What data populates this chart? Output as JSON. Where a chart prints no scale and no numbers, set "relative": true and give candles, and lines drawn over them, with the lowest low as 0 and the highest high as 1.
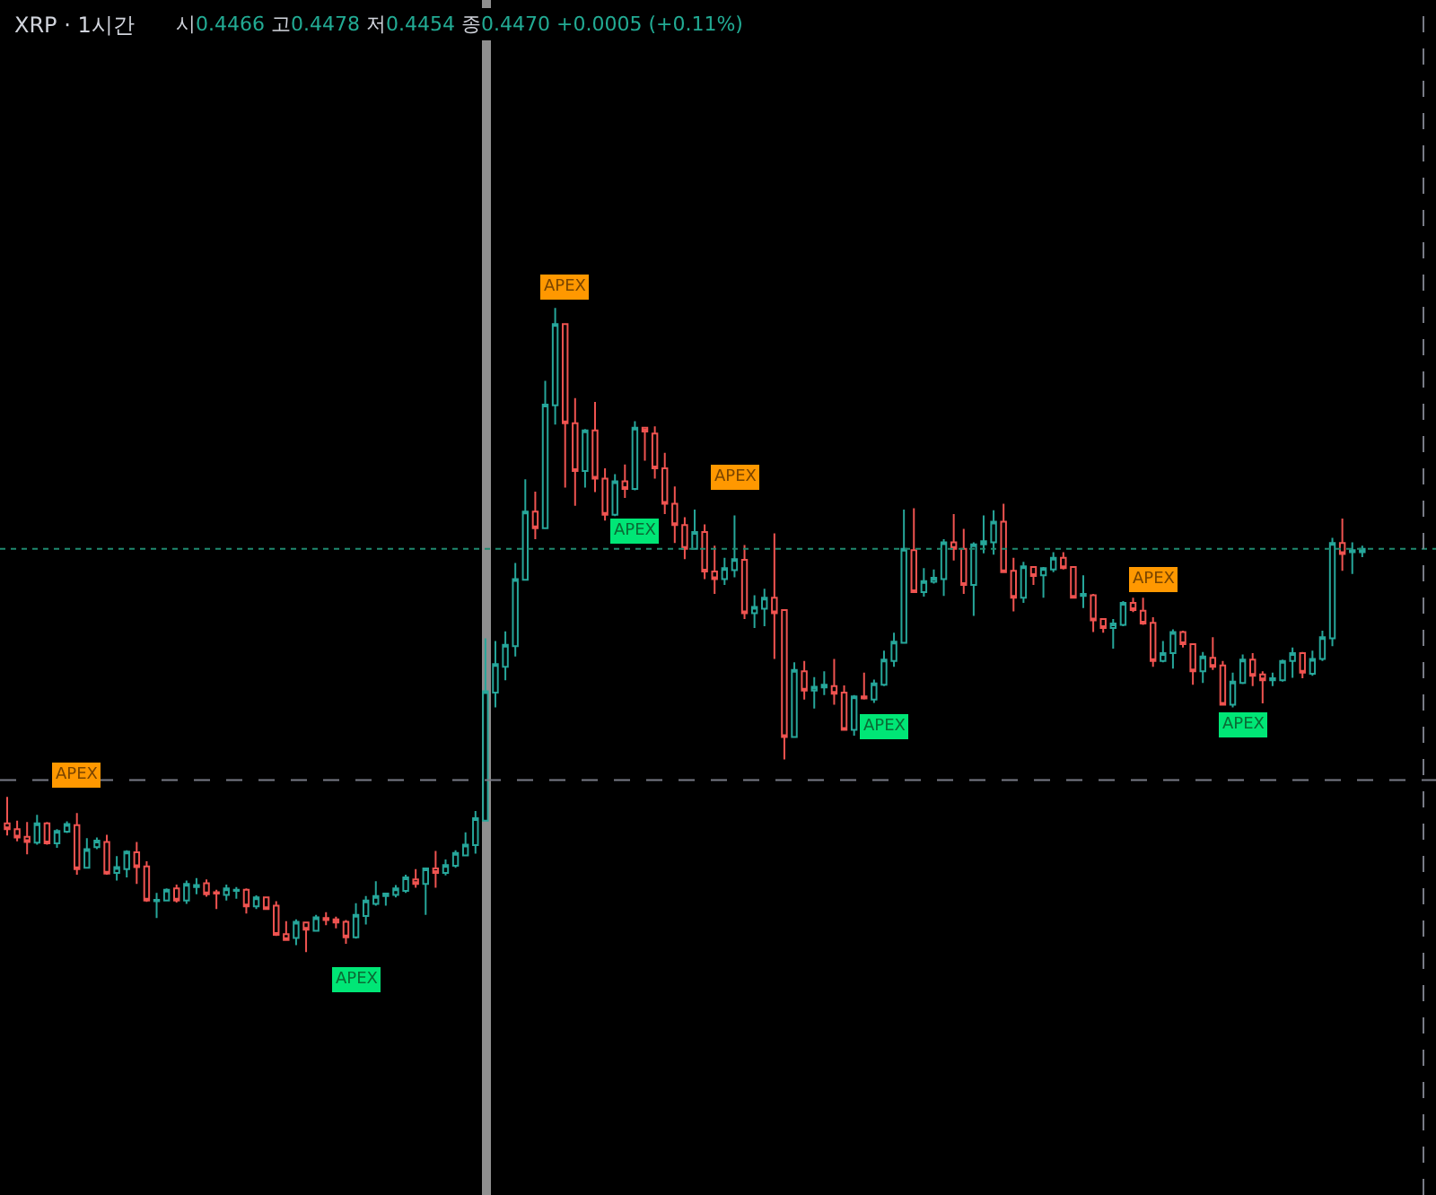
{
  "chart_data": {
    "type": "candlestick",
    "title": "XRP · 1시간",
    "subtitle": "시0.4466 고0.4478 저0.4454 종0.4470 +0.0005 (+0.11%)",
    "relative": true,
    "categories": [
      null,
      null,
      null,
      null,
      null,
      null,
      null,
      null,
      null,
      null,
      null,
      null,
      null,
      null,
      null,
      null,
      null,
      null,
      null,
      null,
      null,
      null,
      null,
      null,
      null,
      null,
      null,
      null,
      null,
      null,
      null,
      null,
      null,
      null,
      null,
      null,
      null,
      null,
      null,
      null,
      null,
      null,
      null,
      null,
      null,
      null,
      null,
      null,
      null,
      null,
      null,
      null,
      null,
      null,
      null,
      null,
      null,
      null,
      null,
      null,
      null,
      null,
      null,
      null,
      null,
      null,
      null,
      null,
      null,
      null,
      null,
      null,
      null,
      null,
      null,
      null,
      null,
      null,
      null,
      null,
      null,
      null,
      null,
      null,
      null,
      null,
      null,
      null,
      null,
      null,
      null,
      null,
      null,
      null,
      null,
      null,
      null,
      null,
      null,
      null,
      null,
      null,
      null,
      null,
      null,
      null,
      null,
      null,
      null,
      null,
      null,
      null,
      null,
      null,
      null,
      null,
      null,
      null,
      null,
      null,
      null,
      null,
      null,
      null,
      null,
      null,
      null,
      null,
      null,
      null,
      null,
      null,
      null,
      null,
      null,
      null,
      null
    ],
    "ohlc": [
      [
        0.2,
        0.241,
        0.181,
        0.191
      ],
      [
        0.191,
        0.204,
        0.172,
        0.178
      ],
      [
        0.179,
        0.202,
        0.152,
        0.171
      ],
      [
        0.17,
        0.213,
        0.167,
        0.2
      ],
      [
        0.2,
        0.202,
        0.167,
        0.169
      ],
      [
        0.169,
        0.191,
        0.162,
        0.188
      ],
      [
        0.187,
        0.203,
        0.185,
        0.199
      ],
      [
        0.197,
        0.216,
        0.12,
        0.129
      ],
      [
        0.131,
        0.177,
        0.13,
        0.16
      ],
      [
        0.163,
        0.178,
        0.16,
        0.173
      ],
      [
        0.171,
        0.182,
        0.12,
        0.122
      ],
      [
        0.123,
        0.149,
        0.111,
        0.132
      ],
      [
        0.129,
        0.158,
        0.116,
        0.156
      ],
      [
        0.155,
        0.171,
        0.106,
        0.132
      ],
      [
        0.133,
        0.141,
        0.078,
        0.08
      ],
      [
        0.079,
        0.092,
        0.053,
        0.081
      ],
      [
        0.08,
        0.099,
        0.079,
        0.097
      ],
      [
        0.099,
        0.105,
        0.077,
        0.08
      ],
      [
        0.08,
        0.111,
        0.075,
        0.106
      ],
      [
        0.101,
        0.115,
        0.09,
        0.104
      ],
      [
        0.107,
        0.113,
        0.086,
        0.09
      ],
      [
        0.093,
        0.097,
        0.067,
        0.091
      ],
      [
        0.089,
        0.105,
        0.08,
        0.099
      ],
      [
        0.095,
        0.101,
        0.083,
        0.097
      ],
      [
        0.097,
        0.099,
        0.06,
        0.071
      ],
      [
        0.071,
        0.088,
        0.067,
        0.085
      ],
      [
        0.085,
        0.086,
        0.066,
        0.067
      ],
      [
        0.072,
        0.079,
        0.025,
        0.027
      ],
      [
        0.028,
        0.048,
        0.019,
        0.019
      ],
      [
        0.022,
        0.051,
        0.011,
        0.047
      ],
      [
        0.046,
        0.046,
        0,
        0.035
      ],
      [
        0.033,
        0.058,
        0.032,
        0.054
      ],
      [
        0.053,
        0.062,
        0.042,
        0.05
      ],
      [
        0.051,
        0.055,
        0.037,
        0.046
      ],
      [
        0.047,
        0.05,
        0.013,
        0.023
      ],
      [
        0.023,
        0.076,
        0.021,
        0.058
      ],
      [
        0.056,
        0.087,
        0.043,
        0.08
      ],
      [
        0.075,
        0.11,
        0.072,
        0.087
      ],
      [
        0.087,
        0.091,
        0.072,
        0.091
      ],
      [
        0.089,
        0.104,
        0.085,
        0.099
      ],
      [
        0.095,
        0.12,
        0.092,
        0.116
      ],
      [
        0.113,
        0.129,
        0.1,
        0.106
      ],
      [
        0.106,
        0.131,
        0.058,
        0.13
      ],
      [
        0.13,
        0.157,
        0.1,
        0.123
      ],
      [
        0.123,
        0.144,
        0.119,
        0.135
      ],
      [
        0.134,
        0.158,
        0.131,
        0.154
      ],
      [
        0.15,
        0.186,
        0.149,
        0.167
      ],
      [
        0.166,
        0.219,
        0.153,
        0.208
      ],
      [
        0.204,
        0.487,
        0.204,
        0.405
      ],
      [
        0.403,
        0.483,
        0.38,
        0.447
      ],
      [
        0.443,
        0.498,
        0.422,
        0.477
      ],
      [
        0.475,
        0.604,
        0.459,
        0.579
      ],
      [
        0.578,
        0.734,
        0.578,
        0.684
      ],
      [
        0.684,
        0.715,
        0.641,
        0.658
      ],
      [
        0.658,
        0.887,
        0.658,
        0.85
      ],
      [
        0.849,
        1,
        0.819,
        0.975
      ],
      [
        0.975,
        0.975,
        0.721,
        0.821
      ],
      [
        0.821,
        0.86,
        0.693,
        0.747
      ],
      [
        0.747,
        0.812,
        0.721,
        0.81
      ],
      [
        0.81,
        0.854,
        0.714,
        0.735
      ],
      [
        0.735,
        0.751,
        0.67,
        0.679
      ],
      [
        0.679,
        0.742,
        0.677,
        0.731
      ],
      [
        0.731,
        0.757,
        0.705,
        0.719
      ],
      [
        0.719,
        0.824,
        0.717,
        0.814
      ],
      [
        0.814,
        0.814,
        0.763,
        0.808
      ],
      [
        0.805,
        0.816,
        0.735,
        0.751
      ],
      [
        0.751,
        0.775,
        0.68,
        0.696
      ],
      [
        0.696,
        0.723,
        0.635,
        0.663
      ],
      [
        0.663,
        0.675,
        0.61,
        0.626
      ],
      [
        0.626,
        0.687,
        0.626,
        0.652
      ],
      [
        0.652,
        0.664,
        0.579,
        0.591
      ],
      [
        0.591,
        0.631,
        0.556,
        0.579
      ],
      [
        0.579,
        0.612,
        0.57,
        0.596
      ],
      [
        0.593,
        0.678,
        0.582,
        0.61
      ],
      [
        0.609,
        0.632,
        0.517,
        0.526
      ],
      [
        0.526,
        0.554,
        0.503,
        0.536
      ],
      [
        0.533,
        0.564,
        0.506,
        0.55
      ],
      [
        0.55,
        0.65,
        0.455,
        0.526
      ],
      [
        0.531,
        0.531,
        0.299,
        0.334
      ],
      [
        0.334,
        0.45,
        0.334,
        0.438
      ],
      [
        0.436,
        0.452,
        0.392,
        0.406
      ],
      [
        0.406,
        0.427,
        0.378,
        0.412
      ],
      [
        0.411,
        0.436,
        0.399,
        0.415
      ],
      [
        0.413,
        0.455,
        0.384,
        0.401
      ],
      [
        0.403,
        0.414,
        0.345,
        0.345
      ],
      [
        0.345,
        0.399,
        0.336,
        0.397
      ],
      [
        0.397,
        0.434,
        0.392,
        0.394
      ],
      [
        0.392,
        0.423,
        0.387,
        0.417
      ],
      [
        0.415,
        0.468,
        0.413,
        0.454
      ],
      [
        0.452,
        0.496,
        0.443,
        0.482
      ],
      [
        0.48,
        0.687,
        0.48,
        0.626
      ],
      [
        0.624,
        0.689,
        0.559,
        0.559
      ],
      [
        0.559,
        0.596,
        0.552,
        0.576
      ],
      [
        0.575,
        0.594,
        0.572,
        0.581
      ],
      [
        0.579,
        0.641,
        0.553,
        0.636
      ],
      [
        0.636,
        0.68,
        0.608,
        0.626
      ],
      [
        0.626,
        0.657,
        0.556,
        0.57
      ],
      [
        0.57,
        0.636,
        0.522,
        0.633
      ],
      [
        0.633,
        0.678,
        0.619,
        0.638
      ],
      [
        0.636,
        0.686,
        0.617,
        0.668
      ],
      [
        0.668,
        0.696,
        0.59,
        0.59
      ],
      [
        0.592,
        0.612,
        0.529,
        0.55
      ],
      [
        0.55,
        0.606,
        0.542,
        0.599
      ],
      [
        0.598,
        0.598,
        0.57,
        0.584
      ],
      [
        0.585,
        0.598,
        0.55,
        0.596
      ],
      [
        0.594,
        0.621,
        0.59,
        0.612
      ],
      [
        0.612,
        0.621,
        0.594,
        0.596
      ],
      [
        0.598,
        0.598,
        0.55,
        0.55
      ],
      [
        0.553,
        0.585,
        0.534,
        0.556
      ],
      [
        0.554,
        0.556,
        0.497,
        0.515
      ],
      [
        0.517,
        0.517,
        0.496,
        0.503
      ],
      [
        0.503,
        0.517,
        0.471,
        0.51
      ],
      [
        0.508,
        0.545,
        0.506,
        0.542
      ],
      [
        0.542,
        0.55,
        0.528,
        0.531
      ],
      [
        0.53,
        0.55,
        0.508,
        0.51
      ],
      [
        0.511,
        0.52,
        0.443,
        0.452
      ],
      [
        0.452,
        0.483,
        0.45,
        0.464
      ],
      [
        0.464,
        0.501,
        0.44,
        0.497
      ],
      [
        0.497,
        0.499,
        0.473,
        0.478
      ],
      [
        0.478,
        0.478,
        0.415,
        0.436
      ],
      [
        0.436,
        0.466,
        0.418,
        0.459
      ],
      [
        0.457,
        0.489,
        0.438,
        0.443
      ],
      [
        0.445,
        0.452,
        0.383,
        0.384
      ],
      [
        0.384,
        0.434,
        0.38,
        0.42
      ],
      [
        0.418,
        0.462,
        0.416,
        0.454
      ],
      [
        0.454,
        0.464,
        0.413,
        0.429
      ],
      [
        0.431,
        0.436,
        0.386,
        0.422
      ],
      [
        0.422,
        0.434,
        0.413,
        0.425
      ],
      [
        0.422,
        0.454,
        0.42,
        0.452
      ],
      [
        0.452,
        0.473,
        0.426,
        0.464
      ],
      [
        0.464,
        0.466,
        0.425,
        0.434
      ],
      [
        0.432,
        0.468,
        0.429,
        0.455
      ],
      [
        0.455,
        0.499,
        0.452,
        0.489
      ],
      [
        0.487,
        0.643,
        0.475,
        0.635
      ],
      [
        0.635,
        0.673,
        0.592,
        0.618
      ],
      [
        0.621,
        0.636,
        0.587,
        0.624
      ],
      [
        0.621,
        0.631,
        0.613,
        0.626
      ]
    ],
    "colors": [
      "#ef5350",
      "#ef5350",
      "#ef5350",
      "#26a69a",
      "#ef5350",
      "#26a69a",
      "#26a69a",
      "#ef5350",
      "#26a69a",
      "#26a69a",
      "#ef5350",
      "#26a69a",
      "#26a69a",
      "#ef5350",
      "#ef5350",
      "#26a69a",
      "#26a69a",
      "#ef5350",
      "#26a69a",
      "#26a69a",
      "#ef5350",
      "#ef5350",
      "#26a69a",
      "#26a69a",
      "#ef5350",
      "#26a69a",
      "#ef5350",
      "#ef5350",
      "#ef5350",
      "#26a69a",
      "#ef5350",
      "#26a69a",
      "#ef5350",
      "#ef5350",
      "#ef5350",
      "#26a69a",
      "#26a69a",
      "#26a69a",
      "#26a69a",
      "#26a69a",
      "#26a69a",
      "#ef5350",
      "#26a69a",
      "#ef5350",
      "#26a69a",
      "#26a69a",
      "#26a69a",
      "#26a69a",
      "#26a69a",
      "#26a69a",
      "#26a69a",
      "#26a69a",
      "#26a69a",
      "#ef5350",
      "#26a69a",
      "#26a69a",
      "#ef5350",
      "#ef5350",
      "#26a69a",
      "#ef5350",
      "#ef5350",
      "#26a69a",
      "#ef5350",
      "#26a69a",
      "#ef5350",
      "#ef5350",
      "#ef5350",
      "#ef5350",
      "#ef5350",
      "#26a69a",
      "#ef5350",
      "#ef5350",
      "#26a69a",
      "#26a69a",
      "#ef5350",
      "#26a69a",
      "#26a69a",
      "#ef5350",
      "#ef5350",
      "#26a69a",
      "#ef5350",
      "#26a69a",
      "#26a69a",
      "#ef5350",
      "#ef5350",
      "#26a69a",
      "#ef5350",
      "#26a69a",
      "#26a69a",
      "#26a69a",
      "#26a69a",
      "#ef5350",
      "#26a69a",
      "#26a69a",
      "#26a69a",
      "#ef5350",
      "#ef5350",
      "#26a69a",
      "#26a69a",
      "#26a69a",
      "#ef5350",
      "#ef5350",
      "#26a69a",
      "#ef5350",
      "#26a69a",
      "#26a69a",
      "#ef5350",
      "#ef5350",
      "#26a69a",
      "#ef5350",
      "#ef5350",
      "#26a69a",
      "#26a69a",
      "#ef5350",
      "#ef5350",
      "#ef5350",
      "#26a69a",
      "#26a69a",
      "#ef5350",
      "#ef5350",
      "#26a69a",
      "#ef5350",
      "#ef5350",
      "#26a69a",
      "#26a69a",
      "#ef5350",
      "#ef5350",
      "#26a69a",
      "#26a69a",
      "#26a69a",
      "#ef5350",
      "#26a69a",
      "#26a69a",
      "#26a69a",
      "#ef5350",
      "#26a69a",
      "#26a69a"
    ],
    "ref_lines": [
      {
        "axis": "y",
        "value": 0.626,
        "color": "#1f8a70",
        "line_style": "dotted"
      },
      {
        "axis": "y",
        "value": 0.267,
        "color": "#787b86",
        "line_style": "dashed"
      }
    ],
    "annotations": [
      {
        "text": "APEX",
        "y": 0.216
      },
      {
        "text": "APEX",
        "y": 0.021
      },
      {
        "text": "APEX",
        "y": 0.975
      },
      {
        "text": "APEX",
        "y": 0.717
      },
      {
        "text": "APEX",
        "y": 0.678
      },
      {
        "text": "APEX",
        "y": 0.413
      },
      {
        "text": "APEX",
        "y": 0.52
      },
      {
        "text": "APEX",
        "y": 0.416
      }
    ]
  }
}
